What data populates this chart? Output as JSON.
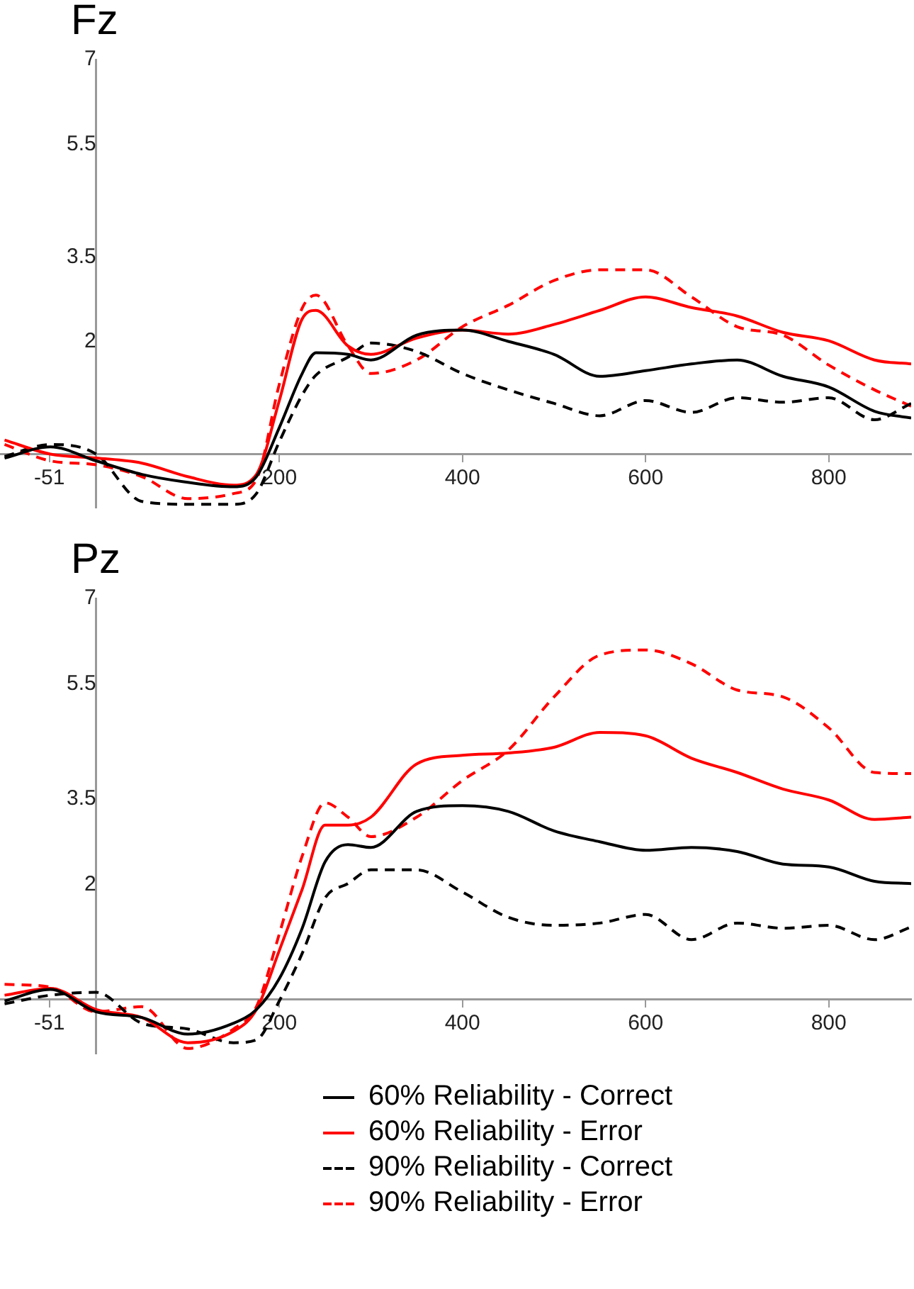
{
  "chart_data": [
    {
      "type": "line",
      "title": "Fz",
      "marker": "none",
      "x": [
        -100,
        -50,
        0,
        50,
        100,
        150,
        175,
        200,
        225,
        240,
        275,
        300,
        350,
        400,
        450,
        500,
        550,
        600,
        650,
        700,
        750,
        800,
        850,
        890
      ],
      "xlim": [
        -105,
        890
      ],
      "xticks": [
        -51,
        200,
        400,
        600,
        800
      ],
      "ylim": [
        -0.95,
        7
      ],
      "yticks": [
        2,
        3.5,
        5.5,
        7
      ],
      "series": [
        {
          "color": "#000000",
          "line_style": "solid",
          "values": [
            -0.07,
            0.13,
            -0.12,
            -0.36,
            -0.5,
            -0.58,
            -0.4,
            0.47,
            1.43,
            1.8,
            1.77,
            1.67,
            2.11,
            2.2,
            2.0,
            1.77,
            1.38,
            1.48,
            1.6,
            1.67,
            1.38,
            1.19,
            0.76,
            0.64
          ]
        },
        {
          "color": "#ff0000",
          "line_style": "solid",
          "values": [
            0.25,
            0,
            -0.07,
            -0.16,
            -0.4,
            -0.55,
            -0.36,
            0.95,
            2.4,
            2.55,
            1.92,
            1.77,
            2.06,
            2.2,
            2.13,
            2.3,
            2.55,
            2.79,
            2.6,
            2.45,
            2.16,
            2.01,
            1.67,
            1.6
          ]
        },
        {
          "color": "#000000",
          "line_style": "dashed",
          "values": [
            -0.04,
            0.17,
            0,
            -0.84,
            -0.89,
            -0.89,
            -0.7,
            0.22,
            1.05,
            1.4,
            1.72,
            1.97,
            1.82,
            1.43,
            1.14,
            0.9,
            0.68,
            0.95,
            0.74,
            1.0,
            0.92,
            1.0,
            0.61,
            0.9
          ]
        },
        {
          "color": "#ff0000",
          "line_style": "dashed",
          "values": [
            0.17,
            -0.12,
            -0.19,
            -0.4,
            -0.79,
            -0.7,
            -0.45,
            1.24,
            2.59,
            2.82,
            1.92,
            1.43,
            1.67,
            2.26,
            2.64,
            3.08,
            3.27,
            3.27,
            2.79,
            2.26,
            2.11,
            1.58,
            1.14,
            0.85
          ]
        }
      ]
    },
    {
      "type": "line",
      "title": "Pz",
      "marker": "none",
      "legend": "bottom",
      "x": [
        -100,
        -50,
        0,
        50,
        100,
        150,
        175,
        200,
        225,
        250,
        275,
        300,
        350,
        400,
        450,
        500,
        550,
        600,
        650,
        700,
        750,
        800,
        850,
        890
      ],
      "xlim": [
        -105,
        890
      ],
      "xticks": [
        -51,
        200,
        400,
        600,
        800
      ],
      "ylim": [
        -0.95,
        7
      ],
      "yticks": [
        2,
        3.5,
        5.5,
        7
      ],
      "series": [
        {
          "name": "60% Reliability - Correct",
          "color": "#000000",
          "line_style": "solid",
          "values": [
            -0.03,
            0.17,
            -0.22,
            -0.32,
            -0.61,
            -0.42,
            -0.18,
            0.36,
            1.24,
            2.4,
            2.7,
            2.65,
            3.28,
            3.38,
            3.28,
            2.94,
            2.75,
            2.6,
            2.65,
            2.58,
            2.36,
            2.31,
            2.06,
            2.02
          ]
        },
        {
          "name": "60% Reliability - Error",
          "color": "#ff0000",
          "line_style": "solid",
          "values": [
            0.07,
            0.19,
            -0.18,
            -0.32,
            -0.76,
            -0.56,
            -0.18,
            0.85,
            1.92,
            3.04,
            3.04,
            3.18,
            4.11,
            4.26,
            4.3,
            4.4,
            4.66,
            4.6,
            4.21,
            3.96,
            3.67,
            3.48,
            3.14,
            3.18
          ]
        },
        {
          "name": "90% Reliability - Correct",
          "color": "#000000",
          "line_style": "dashed",
          "values": [
            -0.08,
            0.07,
            0.12,
            -0.42,
            -0.52,
            -0.76,
            -0.71,
            -0.03,
            0.8,
            1.77,
            2.02,
            2.26,
            2.26,
            1.87,
            1.43,
            1.29,
            1.33,
            1.48,
            1.04,
            1.33,
            1.24,
            1.29,
            1.04,
            1.26
          ]
        },
        {
          "name": "90% Reliability - Error",
          "color": "#ff0000",
          "line_style": "dashed",
          "values": [
            0.26,
            0.21,
            -0.22,
            -0.13,
            -0.86,
            -0.52,
            -0.13,
            1.14,
            2.5,
            3.43,
            3.18,
            2.84,
            3.18,
            3.82,
            4.35,
            5.28,
            6.01,
            6.1,
            5.86,
            5.4,
            5.28,
            4.74,
            3.96,
            3.94
          ]
        }
      ]
    }
  ]
}
